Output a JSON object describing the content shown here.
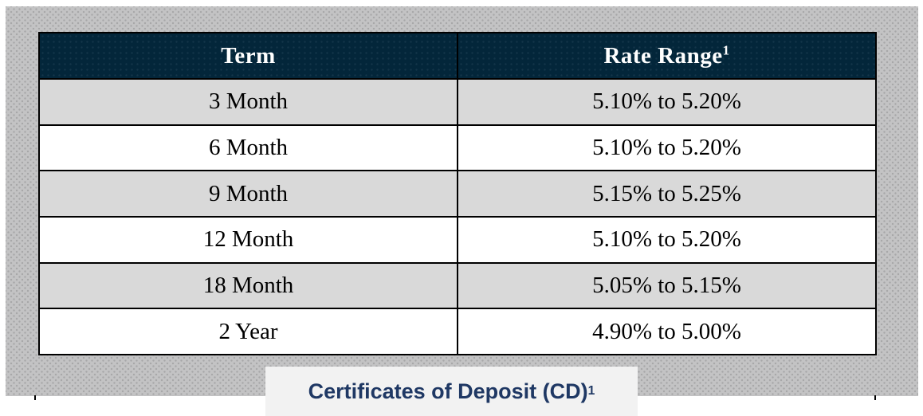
{
  "table": {
    "columns": [
      {
        "label": "Term",
        "superscript": ""
      },
      {
        "label": "Rate Range",
        "superscript": "1"
      }
    ],
    "rows": [
      {
        "term": "3 Month",
        "rate": "5.10% to 5.20%"
      },
      {
        "term": "6 Month",
        "rate": "5.10% to 5.20%"
      },
      {
        "term": "9 Month",
        "rate": "5.15% to 5.25%"
      },
      {
        "term": "12 Month",
        "rate": "5.10% to 5.20%"
      },
      {
        "term": "18 Month",
        "rate": "5.05% to 5.15%"
      },
      {
        "term": "2 Year",
        "rate": "4.90% to 5.00%"
      }
    ]
  },
  "caption": {
    "text": "Certificates of Deposit (CD)",
    "superscript": "1"
  },
  "colors": {
    "header-bg": "#03263a",
    "row-alt-bg": "#d9d9d9",
    "backdrop-bg": "#c3c3c4",
    "backdrop-dot": "#a7a7a8",
    "caption-bg": "#f2f2f2",
    "caption-color": "#1f3864"
  }
}
